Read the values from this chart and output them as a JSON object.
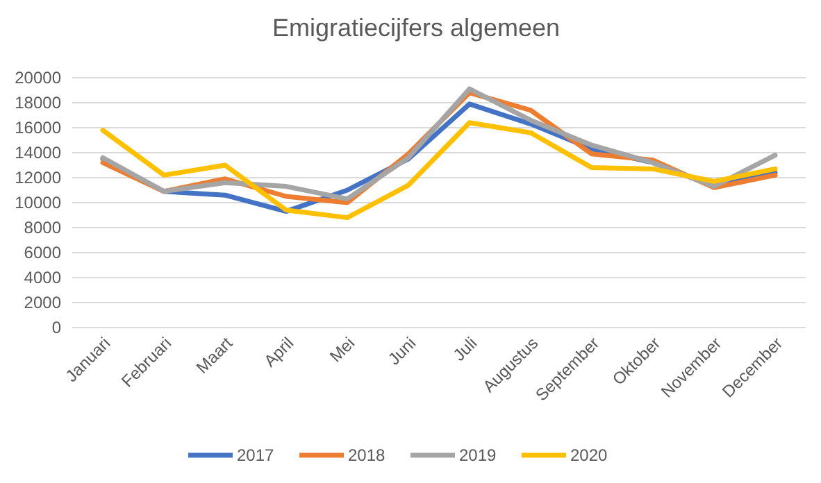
{
  "chart_data": {
    "type": "line",
    "title": "Emigratiecijfers algemeen",
    "categories": [
      "Januari",
      "Februari",
      "Maart",
      "April",
      "Mei",
      "Juni",
      "Juli",
      "Augustus",
      "September",
      "Oktober",
      "November",
      "December"
    ],
    "series": [
      {
        "name": "2017",
        "color": "#4472c4",
        "values": [
          13500,
          10900,
          10600,
          9300,
          11000,
          13500,
          17900,
          16300,
          14300,
          13200,
          11300,
          12400
        ]
      },
      {
        "name": "2018",
        "color": "#ed7d31",
        "values": [
          13200,
          10900,
          11900,
          10500,
          10000,
          13900,
          18800,
          17400,
          13900,
          13400,
          11200,
          12200
        ]
      },
      {
        "name": "2019",
        "color": "#a5a5a5",
        "values": [
          13600,
          10900,
          11600,
          11300,
          10300,
          13600,
          19100,
          16600,
          14600,
          13200,
          11300,
          13800
        ]
      },
      {
        "name": "2020",
        "color": "#ffc000",
        "values": [
          15800,
          12200,
          13000,
          9400,
          8800,
          11400,
          16400,
          15600,
          12800,
          12700,
          11700,
          12700
        ]
      }
    ],
    "ylim": [
      0,
      20000
    ],
    "yticks": [
      0,
      2000,
      4000,
      6000,
      8000,
      10000,
      12000,
      14000,
      16000,
      18000,
      20000
    ],
    "grid": "y",
    "legend": "bottom",
    "marker": "none",
    "line_style": "solid"
  }
}
